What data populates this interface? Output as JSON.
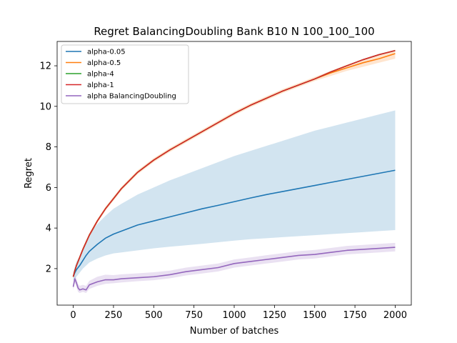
{
  "chart_data": {
    "type": "line",
    "title": "Regret BalancingDoubling Bank B10 N 100_100_100",
    "xlabel": "Number of batches",
    "ylabel": "Regret",
    "xlim": [
      -100,
      2100
    ],
    "ylim": [
      0.2,
      13.2
    ],
    "xticks": [
      0,
      250,
      500,
      750,
      1000,
      1250,
      1500,
      1750,
      2000
    ],
    "yticks": [
      2,
      4,
      6,
      8,
      10,
      12
    ],
    "grid": false,
    "legend_position": "upper-left",
    "series": [
      {
        "name": "alpha-0.05",
        "color": "#1f77b4",
        "x": [
          0,
          10,
          20,
          40,
          60,
          80,
          100,
          150,
          200,
          250,
          300,
          400,
          500,
          600,
          700,
          800,
          900,
          1000,
          1100,
          1200,
          1300,
          1400,
          1500,
          1600,
          1700,
          1800,
          1900,
          2000
        ],
        "y": [
          1.6,
          1.8,
          1.95,
          2.15,
          2.4,
          2.65,
          2.85,
          3.2,
          3.5,
          3.7,
          3.85,
          4.15,
          4.35,
          4.55,
          4.75,
          4.95,
          5.12,
          5.3,
          5.48,
          5.65,
          5.8,
          5.95,
          6.1,
          6.25,
          6.4,
          6.55,
          6.7,
          6.85
        ],
        "band_lower": [
          1.4,
          1.5,
          1.6,
          1.8,
          2.0,
          2.15,
          2.3,
          2.5,
          2.65,
          2.75,
          2.8,
          2.9,
          3.0,
          3.08,
          3.15,
          3.22,
          3.3,
          3.38,
          3.45,
          3.5,
          3.55,
          3.6,
          3.65,
          3.7,
          3.75,
          3.8,
          3.85,
          3.9
        ],
        "band_upper": [
          1.8,
          2.1,
          2.35,
          2.6,
          2.9,
          3.3,
          3.7,
          4.2,
          4.6,
          4.95,
          5.2,
          5.65,
          6.0,
          6.35,
          6.65,
          6.95,
          7.25,
          7.55,
          7.8,
          8.05,
          8.3,
          8.55,
          8.8,
          9.0,
          9.2,
          9.4,
          9.6,
          9.8
        ]
      },
      {
        "name": "alpha-0.5",
        "color": "#ff7f0e",
        "x": [
          0,
          10,
          20,
          40,
          60,
          80,
          100,
          150,
          200,
          250,
          300,
          400,
          500,
          600,
          700,
          800,
          900,
          1000,
          1100,
          1200,
          1300,
          1400,
          1500,
          1600,
          1700,
          1800,
          1900,
          2000
        ],
        "y": [
          1.6,
          1.9,
          2.15,
          2.55,
          2.95,
          3.3,
          3.65,
          4.35,
          4.95,
          5.45,
          5.95,
          6.75,
          7.35,
          7.85,
          8.3,
          8.75,
          9.2,
          9.65,
          10.05,
          10.4,
          10.75,
          11.05,
          11.35,
          11.65,
          11.9,
          12.15,
          12.35,
          12.6
        ],
        "band_lower": [
          1.5,
          1.8,
          2.05,
          2.45,
          2.85,
          3.2,
          3.55,
          4.25,
          4.85,
          5.35,
          5.85,
          6.65,
          7.25,
          7.75,
          8.2,
          8.65,
          9.1,
          9.55,
          9.95,
          10.3,
          10.65,
          10.95,
          11.25,
          11.5,
          11.75,
          11.95,
          12.15,
          12.35
        ],
        "band_upper": [
          1.7,
          2.0,
          2.25,
          2.65,
          3.05,
          3.4,
          3.75,
          4.45,
          5.05,
          5.55,
          6.05,
          6.85,
          7.45,
          7.95,
          8.4,
          8.85,
          9.3,
          9.75,
          10.15,
          10.5,
          10.85,
          11.15,
          11.45,
          11.75,
          12.05,
          12.3,
          12.55,
          12.8
        ]
      },
      {
        "name": "alpha-4",
        "color": "#2ca02c",
        "x": [
          0,
          10,
          20,
          40,
          60,
          80,
          100,
          150,
          200,
          250,
          300,
          400,
          500,
          600,
          700,
          800,
          900,
          1000,
          1100,
          1200,
          1300,
          1400,
          1500,
          1600,
          1700,
          1800,
          1900,
          2000
        ],
        "y": [
          1.6,
          1.9,
          2.15,
          2.55,
          2.95,
          3.3,
          3.65,
          4.35,
          4.95,
          5.45,
          5.95,
          6.75,
          7.35,
          7.85,
          8.3,
          8.75,
          9.2,
          9.65,
          10.05,
          10.4,
          10.75,
          11.05,
          11.35,
          11.7,
          12.0,
          12.3,
          12.55,
          12.75
        ]
      },
      {
        "name": "alpha-1",
        "color": "#d62728",
        "x": [
          0,
          10,
          20,
          40,
          60,
          80,
          100,
          150,
          200,
          250,
          300,
          400,
          500,
          600,
          700,
          800,
          900,
          1000,
          1100,
          1200,
          1300,
          1400,
          1500,
          1600,
          1700,
          1800,
          1900,
          2000
        ],
        "y": [
          1.6,
          1.9,
          2.15,
          2.55,
          2.95,
          3.3,
          3.65,
          4.35,
          4.95,
          5.45,
          5.95,
          6.75,
          7.35,
          7.85,
          8.3,
          8.75,
          9.2,
          9.65,
          10.05,
          10.4,
          10.75,
          11.05,
          11.35,
          11.7,
          12.0,
          12.3,
          12.55,
          12.75
        ]
      },
      {
        "name": "alpha BalancingDoubling",
        "color": "#9467bd",
        "x": [
          0,
          10,
          20,
          30,
          40,
          60,
          80,
          100,
          150,
          200,
          250,
          300,
          400,
          500,
          600,
          700,
          800,
          900,
          1000,
          1100,
          1200,
          1300,
          1400,
          1500,
          1600,
          1700,
          1800,
          1900,
          2000
        ],
        "y": [
          1.1,
          1.5,
          1.3,
          1.05,
          0.95,
          1.0,
          0.95,
          1.2,
          1.35,
          1.45,
          1.45,
          1.5,
          1.55,
          1.6,
          1.7,
          1.85,
          1.95,
          2.05,
          2.25,
          2.35,
          2.45,
          2.55,
          2.65,
          2.7,
          2.8,
          2.9,
          2.95,
          3.0,
          3.05
        ],
        "band_lower": [
          0.95,
          1.3,
          1.1,
          0.85,
          0.8,
          0.85,
          0.8,
          1.0,
          1.15,
          1.25,
          1.28,
          1.32,
          1.38,
          1.43,
          1.52,
          1.66,
          1.76,
          1.86,
          2.05,
          2.15,
          2.25,
          2.35,
          2.45,
          2.5,
          2.6,
          2.7,
          2.75,
          2.8,
          2.85
        ],
        "band_upper": [
          1.25,
          1.7,
          1.5,
          1.25,
          1.15,
          1.2,
          1.15,
          1.4,
          1.6,
          1.7,
          1.68,
          1.72,
          1.77,
          1.82,
          1.9,
          2.05,
          2.15,
          2.25,
          2.45,
          2.55,
          2.66,
          2.76,
          2.86,
          2.92,
          3.02,
          3.12,
          3.17,
          3.22,
          3.27
        ]
      }
    ]
  }
}
